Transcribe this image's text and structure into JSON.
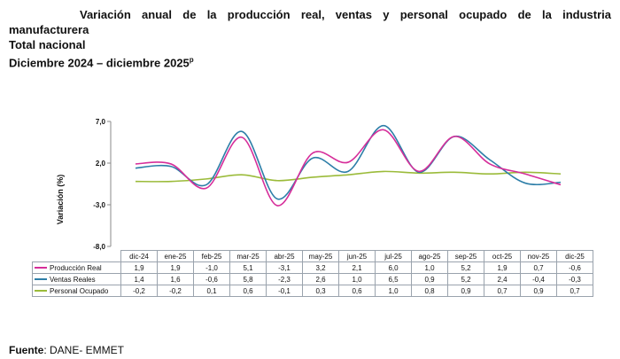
{
  "header": {
    "title_line1": "Variación anual de la producción real, ventas y personal ocupado de la industria",
    "title_line2": "manufacturera",
    "subtitle": "Total nacional",
    "period": "Diciembre 2024 – diciembre 2025",
    "period_sup": "p"
  },
  "footer": {
    "label": "Fuente",
    "text": ": DANE- EMMET"
  },
  "chart_data": {
    "type": "line",
    "ylabel": "Variación (%)",
    "ylim": [
      -8.0,
      7.0
    ],
    "yticks": [
      "7,0",
      "2,0",
      "-3,0",
      "-8,0"
    ],
    "ytick_values": [
      7.0,
      2.0,
      -3.0,
      -8.0
    ],
    "grid": false,
    "legend": "table-below",
    "categories": [
      "dic-24",
      "ene-25",
      "feb-25",
      "mar-25",
      "abr-25",
      "may-25",
      "jun-25",
      "jul-25",
      "ago-25",
      "sep-25",
      "oct-25",
      "nov-25",
      "dic-25"
    ],
    "series": [
      {
        "name": "Producción Real",
        "color": "#d62e9a",
        "values": [
          1.9,
          1.9,
          -1.0,
          5.1,
          -3.1,
          3.2,
          2.1,
          6.0,
          1.0,
          5.2,
          1.9,
          0.7,
          -0.6
        ],
        "labels": [
          "1,9",
          "1,9",
          "-1,0",
          "5,1",
          "-3,1",
          "3,2",
          "2,1",
          "6,0",
          "1,0",
          "5,2",
          "1,9",
          "0,7",
          "-0,6"
        ]
      },
      {
        "name": "Ventas Reales",
        "color": "#2d7ea8",
        "values": [
          1.4,
          1.6,
          -0.6,
          5.8,
          -2.3,
          2.6,
          1.0,
          6.5,
          0.9,
          5.2,
          2.4,
          -0.4,
          -0.3
        ],
        "labels": [
          "1,4",
          "1,6",
          "-0,6",
          "5,8",
          "-2,3",
          "2,6",
          "1,0",
          "6,5",
          "0,9",
          "5,2",
          "2,4",
          "-0,4",
          "-0,3"
        ]
      },
      {
        "name": "Personal Ocupado",
        "color": "#9bbb3a",
        "values": [
          -0.2,
          -0.2,
          0.1,
          0.6,
          -0.1,
          0.3,
          0.6,
          1.0,
          0.8,
          0.9,
          0.7,
          0.9,
          0.7
        ],
        "labels": [
          "-0,2",
          "-0,2",
          "0,1",
          "0,6",
          "-0,1",
          "0,3",
          "0,6",
          "1,0",
          "0,8",
          "0,9",
          "0,7",
          "0,9",
          "0,7"
        ]
      }
    ]
  }
}
